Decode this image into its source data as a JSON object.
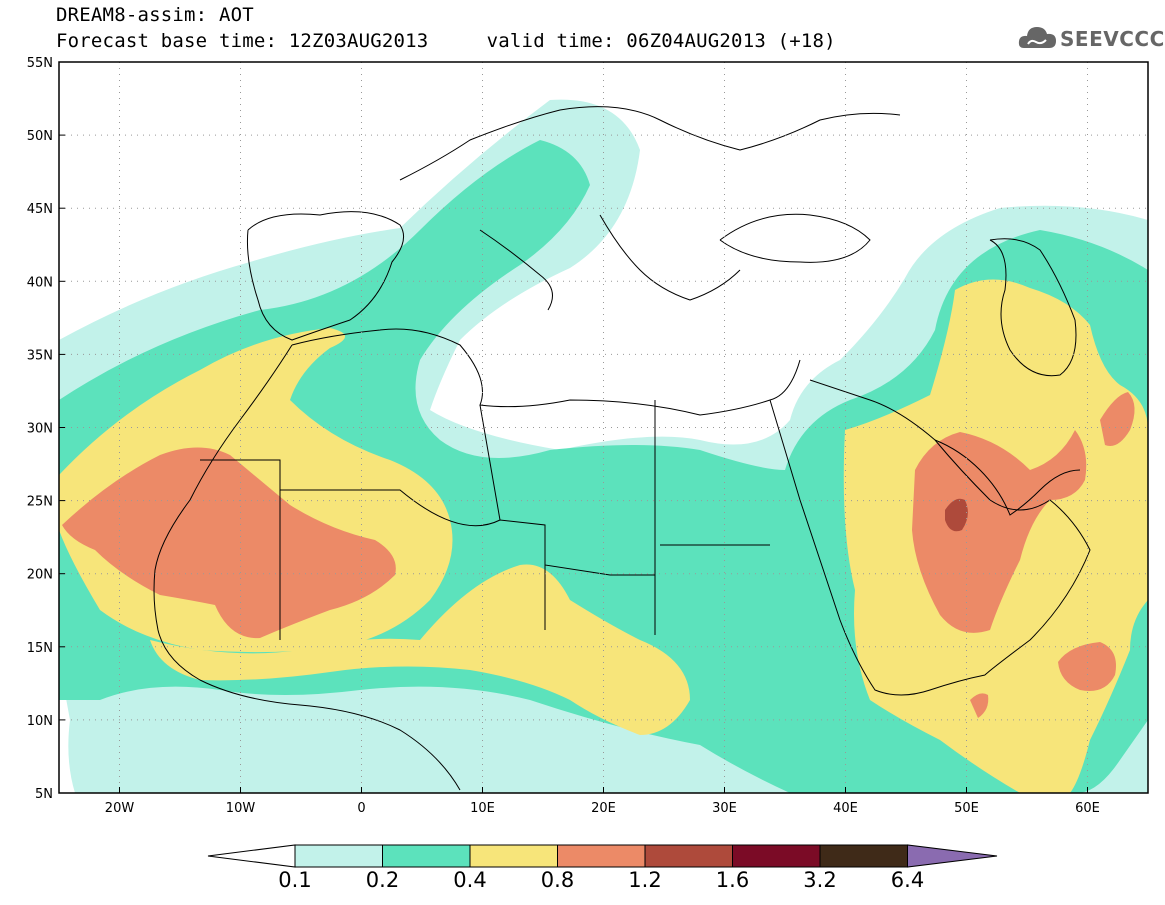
{
  "title": {
    "line1": "DREAM8-assim: AOT",
    "line2": "Forecast base time: 12Z03AUG2013     valid time: 06Z04AUG2013 (+18)"
  },
  "logo": {
    "text": "SEEVCCC",
    "icon": "cloud-logo-icon"
  },
  "map": {
    "lat_labels": [
      "55N",
      "50N",
      "45N",
      "40N",
      "35N",
      "30N",
      "25N",
      "20N",
      "15N",
      "10N",
      "5N"
    ],
    "lon_labels": [
      "20W",
      "10W",
      "0",
      "10E",
      "20E",
      "30E",
      "40E",
      "50E",
      "60E"
    ],
    "lon_range": [
      -25,
      65
    ],
    "lat_range": [
      5,
      55
    ]
  },
  "colorbar": {
    "labels": [
      "0.1",
      "0.2",
      "0.4",
      "0.8",
      "1.2",
      "1.6",
      "3.2",
      "6.4"
    ],
    "colors": [
      "#ffffff",
      "#c2f2ea",
      "#5ce2bc",
      "#f7e57a",
      "#ec8a67",
      "#ae4a3b",
      "#7b0b26",
      "#3f2a18",
      "#8a6bb0"
    ]
  },
  "palette": {
    "c01": "#c2f2ea",
    "c02": "#5ce2bc",
    "c04": "#f7e57a",
    "c08": "#ec8a67",
    "c12": "#ae4a3b",
    "coast": "#000000"
  }
}
